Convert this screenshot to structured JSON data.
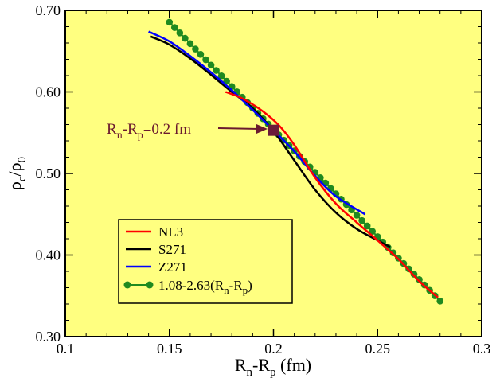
{
  "chart_data": {
    "type": "line",
    "title": "",
    "xlabel": {
      "main": "R",
      "sub1": "n",
      "mid": "-R",
      "sub2": "p",
      "tail": " (fm)"
    },
    "ylabel": {
      "a": "ρ",
      "asub": "c",
      "mid": "/ρ",
      "bsub": "0"
    },
    "xlim": [
      0.1,
      0.3
    ],
    "ylim": [
      0.3,
      0.7
    ],
    "xticks": [
      0.1,
      0.15,
      0.2,
      0.25,
      0.3
    ],
    "xtick_labels": [
      "0.1",
      "0.15",
      "0.2",
      "0.25",
      "0.3"
    ],
    "yticks": [
      0.3,
      0.4,
      0.5,
      0.6,
      0.7
    ],
    "ytick_labels": [
      "0.30",
      "0.40",
      "0.50",
      "0.60",
      "0.70"
    ],
    "grid": false,
    "background": "#ffff80",
    "legend_position": "lower-left",
    "series": [
      {
        "name": "NL3",
        "color": "#ff0000",
        "marker": "none",
        "x": [
          0.177,
          0.185,
          0.195,
          0.203,
          0.21,
          0.22,
          0.23,
          0.24,
          0.25,
          0.26,
          0.27,
          0.279
        ],
        "y": [
          0.6,
          0.592,
          0.576,
          0.558,
          0.535,
          0.495,
          0.463,
          0.44,
          0.418,
          0.395,
          0.368,
          0.348
        ]
      },
      {
        "name": "S271",
        "color": "#000000",
        "marker": "none",
        "x": [
          0.141,
          0.15,
          0.16,
          0.17,
          0.18,
          0.19,
          0.2,
          0.21,
          0.22,
          0.23,
          0.24,
          0.25,
          0.256
        ],
        "y": [
          0.668,
          0.658,
          0.641,
          0.621,
          0.6,
          0.58,
          0.552,
          0.516,
          0.48,
          0.452,
          0.432,
          0.418,
          0.41
        ]
      },
      {
        "name": "Z271",
        "color": "#0000ff",
        "marker": "none",
        "x": [
          0.14,
          0.15,
          0.16,
          0.17,
          0.18,
          0.19,
          0.2,
          0.21,
          0.22,
          0.23,
          0.244
        ],
        "y": [
          0.674,
          0.662,
          0.644,
          0.624,
          0.602,
          0.578,
          0.553,
          0.527,
          0.497,
          0.472,
          0.45
        ]
      },
      {
        "name": "1.08-2.63(R",
        "name_sub1": "n",
        "name_mid": "-R",
        "name_sub2": "p",
        "name_tail": ")",
        "color": "#1f8a1f",
        "marker": "circle",
        "formula": {
          "a": 1.08,
          "b": -2.63
        },
        "x_start": 0.15,
        "x_end": 0.28,
        "x_step": 0.0025
      }
    ],
    "highlight_point": {
      "x": 0.2,
      "y": 0.553,
      "color": "#6b1a3a"
    },
    "annotation": {
      "main": "R",
      "sub1": "n",
      "mid": "-R",
      "sub2": "p",
      "tail": "=0.2 fm",
      "color": "#6b1a2e"
    }
  }
}
